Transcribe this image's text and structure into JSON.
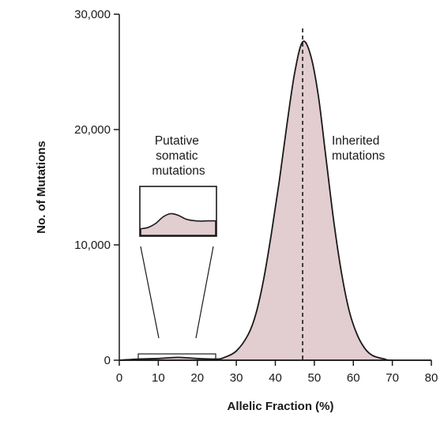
{
  "chart_data": {
    "type": "area",
    "xlabel": "Allelic Fraction (%)",
    "ylabel": "No. of Mutations",
    "xlim": [
      0,
      80
    ],
    "ylim": [
      0,
      30000
    ],
    "x_ticks": [
      0,
      10,
      20,
      30,
      40,
      50,
      60,
      70,
      80
    ],
    "y_ticks": [
      0,
      10000,
      20000,
      30000
    ],
    "x_tick_labels": [
      "0",
      "10",
      "20",
      "30",
      "40",
      "50",
      "60",
      "70",
      "80"
    ],
    "y_tick_labels": [
      "0",
      "10,000",
      "20,000",
      "30,000"
    ],
    "grid": false,
    "legend": "none",
    "series": [
      {
        "x": [
          0,
          5,
          10,
          15,
          20,
          25,
          27,
          30,
          33,
          35,
          37,
          39,
          41,
          43,
          45,
          47,
          49,
          51,
          53,
          55,
          57,
          59,
          61,
          63,
          65,
          68,
          70,
          80
        ],
        "y": [
          0,
          100,
          150,
          250,
          150,
          100,
          250,
          800,
          2200,
          4000,
          7000,
          11000,
          15500,
          20500,
          25000,
          27600,
          26500,
          23000,
          17500,
          12000,
          7500,
          4200,
          2200,
          1000,
          400,
          100,
          0,
          0
        ],
        "fill": "#e2cdd0",
        "stroke": "#1a1a1a"
      }
    ],
    "reference_line": {
      "x": 47,
      "style": "dashed"
    },
    "annotations": {
      "inherited": [
        "Inherited",
        "mutations"
      ],
      "somatic": [
        "Putative",
        "somatic",
        "mutations"
      ]
    },
    "inset": {
      "x_range": [
        5,
        25
      ],
      "y": [
        0.25,
        0.3,
        0.45,
        0.7,
        0.82,
        0.76,
        0.62,
        0.56,
        0.54,
        0.55,
        0.55
      ]
    }
  }
}
